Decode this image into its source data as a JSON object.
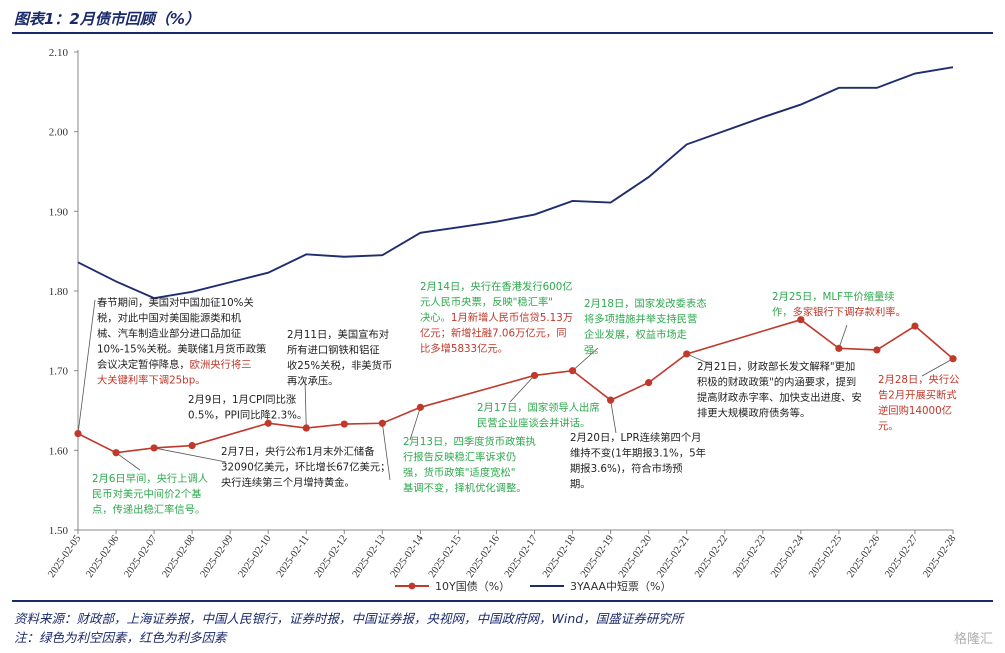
{
  "page": {
    "title": "图表1：2月债市回顾（%）",
    "source": "资料来源：财政部，上海证券报，中国人民银行，证券时报，中国证券报，央视网，中国政府网，Wind，国盛证券研究所",
    "note": "注：绿色为利空因素，红色为利多因素",
    "watermark": "格隆汇"
  },
  "colors": {
    "red": "#c0392b",
    "navy": "#1f2d6e",
    "green": "#2fa84f",
    "text": "#222222"
  },
  "chart_data": {
    "type": "line",
    "x": [
      "2025-02-05",
      "2025-02-06",
      "2025-02-07",
      "2025-02-08",
      "2025-02-09",
      "2025-02-10",
      "2025-02-11",
      "2025-02-12",
      "2025-02-13",
      "2025-02-14",
      "2025-02-15",
      "2025-02-16",
      "2025-02-17",
      "2025-02-18",
      "2025-02-19",
      "2025-02-20",
      "2025-02-21",
      "2025-02-22",
      "2025-02-23",
      "2025-02-24",
      "2025-02-25",
      "2025-02-26",
      "2025-02-27",
      "2025-02-28"
    ],
    "ylim": [
      1.5,
      2.1
    ],
    "yticks": [
      "1.50",
      "1.60",
      "1.70",
      "1.80",
      "1.90",
      "2.00",
      "2.10"
    ],
    "series": [
      {
        "name": "10Y国债（%）",
        "color": "#c0392b",
        "marker": true,
        "values": [
          1.621,
          1.597,
          1.603,
          1.606,
          null,
          1.634,
          1.628,
          1.633,
          1.634,
          1.654,
          null,
          null,
          1.694,
          1.7,
          1.663,
          1.685,
          1.721,
          null,
          null,
          1.764,
          1.728,
          1.726,
          1.756,
          1.715
        ]
      },
      {
        "name": "3YAAA中短票（%）",
        "color": "#1f2d6e",
        "marker": false,
        "values": [
          1.836,
          1.812,
          1.791,
          1.799,
          1.811,
          1.823,
          1.846,
          1.843,
          1.845,
          1.873,
          1.88,
          1.887,
          1.896,
          1.913,
          1.911,
          1.943,
          1.984,
          2.001,
          2.018,
          2.034,
          2.055,
          2.055,
          2.073,
          2.081
        ]
      }
    ],
    "annotations": [
      {
        "lines": [
          [
            {
              "t": "春节期间，美国对中国加征10%关",
              "c": "k"
            }
          ],
          [
            {
              "t": "税，对此中国对美国能源类和机",
              "c": "k"
            }
          ],
          [
            {
              "t": "械、汽车制造业部分进口品加征",
              "c": "k"
            }
          ],
          [
            {
              "t": "10%-15%关税。美联储1月货币政策",
              "c": "k"
            }
          ],
          [
            {
              "t": "会议决定暂停降息，",
              "c": "k"
            },
            {
              "t": "欧洲央行将三",
              "c": "r"
            }
          ],
          [
            {
              "t": "大关键利率下调25bp。",
              "c": "r"
            }
          ]
        ]
      },
      {
        "lines": [
          [
            {
              "t": "2月6日早间，央行上调人",
              "c": "g"
            }
          ],
          [
            {
              "t": "民币对美元中间价2个基",
              "c": "g"
            }
          ],
          [
            {
              "t": "点，传递出稳汇率信号。",
              "c": "g"
            }
          ]
        ]
      },
      {
        "lines": [
          [
            {
              "t": "2月7日，央行公布1月末外汇储备",
              "c": "k"
            }
          ],
          [
            {
              "t": "32090亿美元，环比增长67亿美元；",
              "c": "k"
            }
          ],
          [
            {
              "t": "央行连续第三个月增持黄金。",
              "c": "k"
            }
          ]
        ]
      },
      {
        "lines": [
          [
            {
              "t": "2月9日，1月CPI同比涨",
              "c": "k"
            }
          ],
          [
            {
              "t": "0.5%，PPI同比降2.3%。",
              "c": "k"
            }
          ]
        ]
      },
      {
        "lines": [
          [
            {
              "t": "2月11日，美国宣布对",
              "c": "k"
            }
          ],
          [
            {
              "t": "所有进口钢铁和铝征",
              "c": "k"
            }
          ],
          [
            {
              "t": "收25%关税，非美货币",
              "c": "k"
            }
          ],
          [
            {
              "t": "再次承压。",
              "c": "k"
            }
          ]
        ]
      },
      {
        "lines": [
          [
            {
              "t": "2月14日，央行在香港发行600亿",
              "c": "g"
            }
          ],
          [
            {
              "t": "元人民币央票，反映\"稳汇率\"",
              "c": "g"
            }
          ],
          [
            {
              "t": "决心。",
              "c": "g"
            },
            {
              "t": "1月新增人民币信贷5.13万",
              "c": "r"
            }
          ],
          [
            {
              "t": "亿元；新增社融7.06万亿元，同",
              "c": "r"
            }
          ],
          [
            {
              "t": "比多增5833亿元。",
              "c": "r"
            }
          ]
        ]
      },
      {
        "lines": [
          [
            {
              "t": "2月13日，四季度货币政策执",
              "c": "g"
            }
          ],
          [
            {
              "t": "行报告反映稳汇率诉求仍",
              "c": "g"
            }
          ],
          [
            {
              "t": "强，货币政策\"适度宽松\"",
              "c": "g"
            }
          ],
          [
            {
              "t": "基调不变，择机优化调整。",
              "c": "g"
            }
          ]
        ]
      },
      {
        "lines": [
          [
            {
              "t": "2月17日，国家领导人出席",
              "c": "g"
            }
          ],
          [
            {
              "t": "民营企业座谈会并讲话。",
              "c": "g"
            }
          ]
        ]
      },
      {
        "lines": [
          [
            {
              "t": "2月18日，国家发改委表态",
              "c": "g"
            }
          ],
          [
            {
              "t": "将多项措施并举支持民营",
              "c": "g"
            }
          ],
          [
            {
              "t": "企业发展，权益市场走",
              "c": "g"
            }
          ],
          [
            {
              "t": "强。",
              "c": "g"
            }
          ]
        ]
      },
      {
        "lines": [
          [
            {
              "t": "2月20日，LPR连续第四个月",
              "c": "k"
            }
          ],
          [
            {
              "t": "维持不变(1年期报3.1%，5年",
              "c": "k"
            }
          ],
          [
            {
              "t": "期报3.6%)，符合市场预",
              "c": "k"
            }
          ],
          [
            {
              "t": "期。",
              "c": "k"
            }
          ]
        ]
      },
      {
        "lines": [
          [
            {
              "t": "2月21日，财政部长发文解释\"更加",
              "c": "k"
            }
          ],
          [
            {
              "t": "积极的财政政策\"的内涵要求，提到",
              "c": "k"
            }
          ],
          [
            {
              "t": "提高财政赤字率、加快支出进度、安",
              "c": "k"
            }
          ],
          [
            {
              "t": "排更大规模政府债务等。",
              "c": "k"
            }
          ]
        ]
      },
      {
        "lines": [
          [
            {
              "t": "2月25日，MLF平价缩量续",
              "c": "g"
            }
          ],
          [
            {
              "t": "作，",
              "c": "g"
            },
            {
              "t": "多家银行下调存款利率。",
              "c": "r"
            }
          ]
        ]
      },
      {
        "lines": [
          [
            {
              "t": "2月28日，央行公",
              "c": "r"
            }
          ],
          [
            {
              "t": "告2月开展买断式",
              "c": "r"
            }
          ],
          [
            {
              "t": "逆回购14000亿",
              "c": "r"
            }
          ],
          [
            {
              "t": "元。",
              "c": "r"
            }
          ]
        ]
      }
    ]
  }
}
